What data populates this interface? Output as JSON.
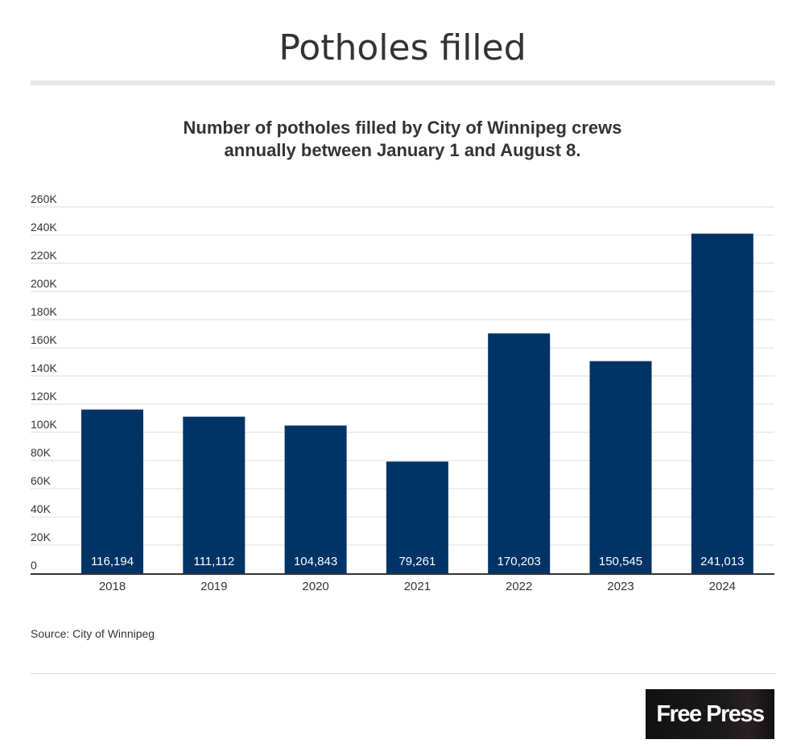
{
  "header": {
    "title": "Potholes filled"
  },
  "chart_data": {
    "type": "bar",
    "title": "Number of potholes filled by City of Winnipeg crews",
    "subtitle": "annually between January 1 and August 8.",
    "categories": [
      "2018",
      "2019",
      "2020",
      "2021",
      "2022",
      "2023",
      "2024"
    ],
    "values": [
      116194,
      111112,
      104843,
      79261,
      170203,
      150545,
      241013
    ],
    "data_labels": [
      "116,194",
      "111,112",
      "104,843",
      "79,261",
      "170,203",
      "150,545",
      "241,013"
    ],
    "yticks": [
      0,
      20000,
      40000,
      60000,
      80000,
      100000,
      120000,
      140000,
      160000,
      180000,
      200000,
      220000,
      240000,
      260000
    ],
    "ytick_labels": [
      "0",
      "20K",
      "40K",
      "60K",
      "80K",
      "100K",
      "120K",
      "140K",
      "160K",
      "180K",
      "200K",
      "220K",
      "240K",
      "260K"
    ],
    "ylim": [
      0,
      260000
    ],
    "xlabel": "",
    "ylabel": "",
    "grid": true,
    "bar_color": "#003366"
  },
  "footer": {
    "source": "Source: City of Winnipeg",
    "logo": "The Free Press"
  }
}
